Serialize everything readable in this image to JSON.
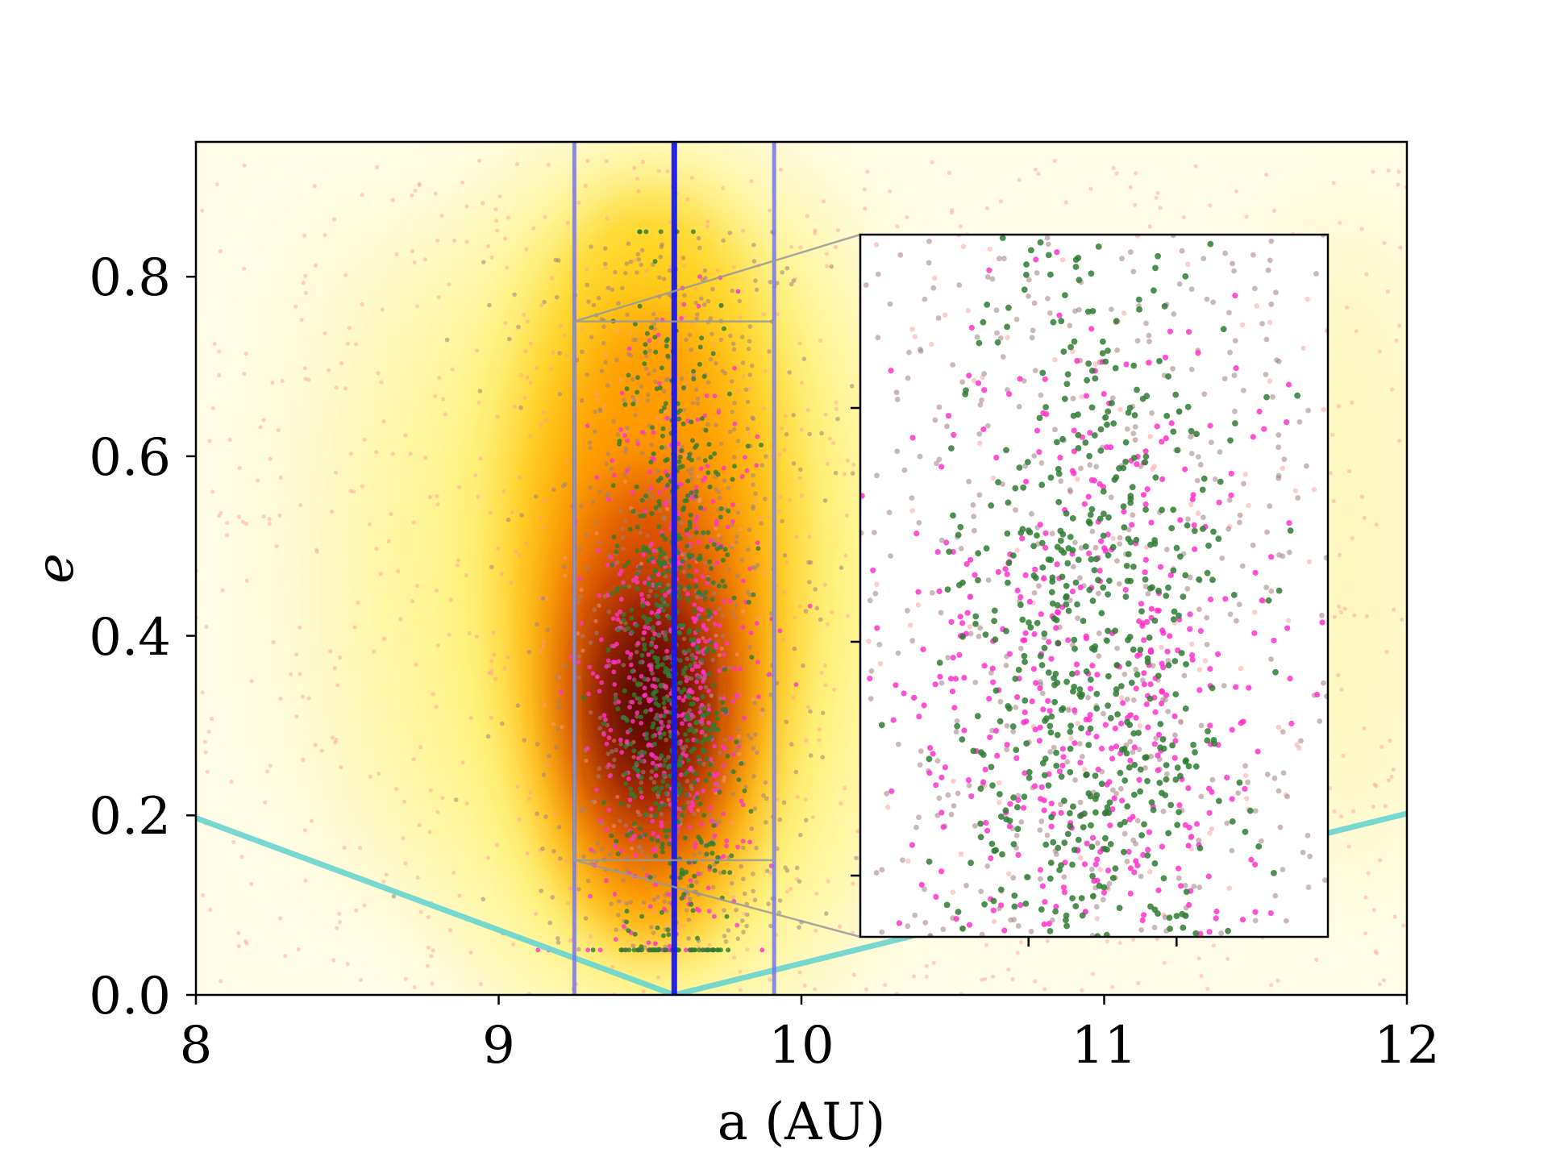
{
  "chart_data": {
    "type": "scatter",
    "title": "",
    "xlabel": "a (AU)",
    "ylabel": "e",
    "xlim": [
      8,
      12
    ],
    "ylim": [
      0,
      0.95
    ],
    "xticks": [
      "8",
      "9",
      "10",
      "11",
      "12"
    ],
    "yticks": [
      "0.0",
      "0.2",
      "0.4",
      "0.6",
      "0.8"
    ],
    "background": "density heatmap (hot colormap)",
    "density_peak": {
      "a": 9.5,
      "e": 0.33
    },
    "vertical_lines": [
      {
        "a": 9.58,
        "color": "#1a1ae6",
        "style": "solid-thick"
      },
      {
        "a": 9.25,
        "color": "#7777e8",
        "style": "solid-thin"
      },
      {
        "a": 9.91,
        "color": "#7777e8",
        "style": "solid-thin"
      }
    ],
    "zoom_box": {
      "a": [
        9.25,
        9.91
      ],
      "e": [
        0.15,
        0.75
      ]
    },
    "curve": {
      "name": "",
      "color": "#6fd6cf",
      "points": [
        [
          8.0,
          0.197
        ],
        [
          9.58,
          0.0
        ],
        [
          12.0,
          0.202
        ]
      ]
    },
    "series": [
      {
        "name": "",
        "color": "#2e7d32",
        "a_center": 9.58,
        "a_spread": 0.1,
        "e_range": [
          0.05,
          0.85
        ]
      },
      {
        "name": "",
        "color": "#ff33cc",
        "a_center": 9.58,
        "a_spread": 0.14,
        "e_range": [
          0.05,
          0.8
        ]
      },
      {
        "name": "",
        "color": "#a08080",
        "a_center": 9.58,
        "a_spread": 0.24,
        "e_range": [
          0.05,
          0.85
        ]
      },
      {
        "name": "",
        "color": "#ff9a9a",
        "a_range": [
          8.0,
          12.0
        ],
        "e_range": [
          0.0,
          0.93
        ]
      }
    ],
    "inset": {
      "xlim": [
        9.25,
        9.91
      ],
      "ylim": [
        0.15,
        0.75
      ],
      "xtick_count": 2,
      "ytick_count": 3
    },
    "grid": false,
    "legend": "none"
  }
}
